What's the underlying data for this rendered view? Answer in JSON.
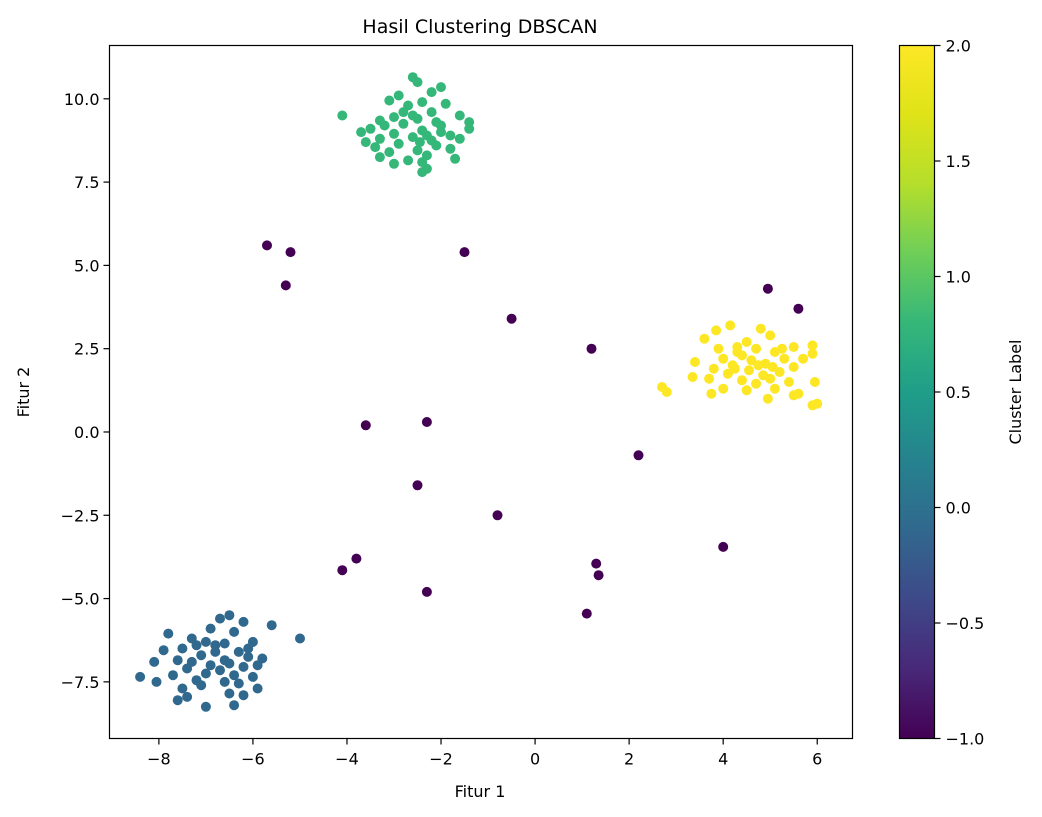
{
  "chart_data": {
    "type": "scatter",
    "title": "Hasil Clustering DBSCAN",
    "xlabel": "Fitur 1",
    "ylabel": "Fitur 2",
    "xlim": [
      -9.05,
      6.75
    ],
    "ylim": [
      -9.2,
      11.6
    ],
    "xticks": [
      -8,
      -6,
      -4,
      -2,
      0,
      2,
      4,
      6
    ],
    "yticks": [
      -7.5,
      -5.0,
      -2.5,
      0.0,
      2.5,
      5.0,
      7.5,
      10.0
    ],
    "xtick_labels": [
      "−8",
      "−6",
      "−4",
      "−2",
      "0",
      "2",
      "4",
      "6"
    ],
    "ytick_labels": [
      "−7.5",
      "−5.0",
      "−2.5",
      "0.0",
      "2.5",
      "5.0",
      "7.5",
      "10.0"
    ],
    "grid": false,
    "colormap": "viridis",
    "colorbar": {
      "label": "Cluster Label",
      "range": [
        -1.0,
        2.0
      ],
      "ticks": [
        -1.0,
        -0.5,
        0.0,
        0.5,
        1.0,
        1.5,
        2.0
      ],
      "tick_labels": [
        "−1.0",
        "−0.5",
        "0.0",
        "0.5",
        "1.0",
        "1.5",
        "2.0"
      ]
    },
    "series": [
      {
        "cluster_label": -1,
        "color": "#440154",
        "points": [
          [
            -5.7,
            5.6
          ],
          [
            -5.2,
            5.4
          ],
          [
            -5.3,
            4.4
          ],
          [
            -1.5,
            5.4
          ],
          [
            -0.5,
            3.4
          ],
          [
            1.2,
            2.5
          ],
          [
            -3.6,
            0.2
          ],
          [
            -2.3,
            0.3
          ],
          [
            2.2,
            -0.7
          ],
          [
            -2.5,
            -1.6
          ],
          [
            -0.8,
            -2.5
          ],
          [
            4.0,
            -3.45
          ],
          [
            -3.8,
            -3.8
          ],
          [
            -4.1,
            -4.15
          ],
          [
            1.3,
            -3.95
          ],
          [
            1.35,
            -4.3
          ],
          [
            -2.3,
            -4.8
          ],
          [
            1.1,
            -5.45
          ],
          [
            4.95,
            4.3
          ],
          [
            5.6,
            3.7
          ]
        ]
      },
      {
        "cluster_label": 0,
        "color": "#30688e",
        "points": [
          [
            -6.5,
            -5.5
          ],
          [
            -6.7,
            -5.6
          ],
          [
            -6.2,
            -5.7
          ],
          [
            -5.6,
            -5.8
          ],
          [
            -6.9,
            -5.9
          ],
          [
            -6.4,
            -6.0
          ],
          [
            -7.8,
            -6.05
          ],
          [
            -5.0,
            -6.2
          ],
          [
            -6.0,
            -6.3
          ],
          [
            -7.0,
            -6.3
          ],
          [
            -6.6,
            -6.35
          ],
          [
            -7.2,
            -6.4
          ],
          [
            -7.5,
            -6.5
          ],
          [
            -7.9,
            -6.55
          ],
          [
            -6.8,
            -6.6
          ],
          [
            -6.3,
            -6.6
          ],
          [
            -7.1,
            -6.7
          ],
          [
            -6.1,
            -6.75
          ],
          [
            -5.8,
            -6.8
          ],
          [
            -7.6,
            -6.85
          ],
          [
            -7.3,
            -6.9
          ],
          [
            -6.5,
            -6.95
          ],
          [
            -6.9,
            -7.0
          ],
          [
            -8.1,
            -6.9
          ],
          [
            -6.2,
            -7.05
          ],
          [
            -5.9,
            -7.0
          ],
          [
            -7.4,
            -7.1
          ],
          [
            -6.7,
            -7.15
          ],
          [
            -7.0,
            -7.25
          ],
          [
            -6.4,
            -7.3
          ],
          [
            -7.7,
            -7.3
          ],
          [
            -6.0,
            -7.35
          ],
          [
            -8.4,
            -7.35
          ],
          [
            -7.2,
            -7.45
          ],
          [
            -6.6,
            -7.5
          ],
          [
            -8.05,
            -7.5
          ],
          [
            -6.3,
            -7.55
          ],
          [
            -7.5,
            -7.7
          ],
          [
            -5.9,
            -7.7
          ],
          [
            -6.5,
            -7.85
          ],
          [
            -6.2,
            -7.9
          ],
          [
            -7.4,
            -7.95
          ],
          [
            -7.6,
            -8.05
          ],
          [
            -6.4,
            -8.2
          ],
          [
            -7.0,
            -8.25
          ],
          [
            -6.8,
            -6.4
          ],
          [
            -7.3,
            -6.2
          ],
          [
            -6.1,
            -6.5
          ],
          [
            -6.6,
            -6.85
          ],
          [
            -7.1,
            -7.6
          ]
        ]
      },
      {
        "cluster_label": 1,
        "color": "#35b779",
        "points": [
          [
            -2.6,
            10.65
          ],
          [
            -2.5,
            10.5
          ],
          [
            -2.0,
            10.35
          ],
          [
            -2.9,
            10.1
          ],
          [
            -2.2,
            10.2
          ],
          [
            -3.1,
            9.95
          ],
          [
            -2.4,
            9.9
          ],
          [
            -1.9,
            9.85
          ],
          [
            -2.7,
            9.8
          ],
          [
            -4.1,
            9.5
          ],
          [
            -2.2,
            9.6
          ],
          [
            -1.6,
            9.5
          ],
          [
            -3.0,
            9.45
          ],
          [
            -2.5,
            9.4
          ],
          [
            -3.3,
            9.35
          ],
          [
            -1.4,
            9.3
          ],
          [
            -2.8,
            9.25
          ],
          [
            -2.0,
            9.2
          ],
          [
            -3.5,
            9.1
          ],
          [
            -1.4,
            9.1
          ],
          [
            -2.4,
            9.05
          ],
          [
            -3.7,
            9.0
          ],
          [
            -3.0,
            8.95
          ],
          [
            -1.8,
            8.9
          ],
          [
            -2.6,
            8.85
          ],
          [
            -3.3,
            8.8
          ],
          [
            -1.6,
            8.8
          ],
          [
            -2.2,
            8.75
          ],
          [
            -3.6,
            8.7
          ],
          [
            -2.9,
            8.65
          ],
          [
            -2.1,
            8.6
          ],
          [
            -3.4,
            8.55
          ],
          [
            -1.8,
            8.5
          ],
          [
            -2.5,
            8.45
          ],
          [
            -3.1,
            8.4
          ],
          [
            -2.3,
            8.3
          ],
          [
            -3.3,
            8.25
          ],
          [
            -1.7,
            8.2
          ],
          [
            -2.7,
            8.15
          ],
          [
            -2.4,
            8.1
          ],
          [
            -3.0,
            8.05
          ],
          [
            -2.3,
            7.9
          ],
          [
            -2.4,
            7.8
          ],
          [
            -2.6,
            9.5
          ],
          [
            -2.0,
            9.0
          ],
          [
            -2.8,
            9.6
          ],
          [
            -3.2,
            9.2
          ],
          [
            -2.3,
            8.9
          ],
          [
            -2.1,
            9.3
          ],
          [
            -2.45,
            8.7
          ]
        ]
      },
      {
        "cluster_label": 2,
        "color": "#fde725",
        "points": [
          [
            4.15,
            3.2
          ],
          [
            4.8,
            3.1
          ],
          [
            3.85,
            3.05
          ],
          [
            5.0,
            2.9
          ],
          [
            3.6,
            2.8
          ],
          [
            4.5,
            2.7
          ],
          [
            5.9,
            2.6
          ],
          [
            4.3,
            2.55
          ],
          [
            5.5,
            2.55
          ],
          [
            3.9,
            2.5
          ],
          [
            4.7,
            2.5
          ],
          [
            5.1,
            2.4
          ],
          [
            5.9,
            2.35
          ],
          [
            4.4,
            2.3
          ],
          [
            4.0,
            2.2
          ],
          [
            5.3,
            2.2
          ],
          [
            5.7,
            2.2
          ],
          [
            4.6,
            2.15
          ],
          [
            3.4,
            2.1
          ],
          [
            4.9,
            2.05
          ],
          [
            4.2,
            2.0
          ],
          [
            5.5,
            1.95
          ],
          [
            3.8,
            1.9
          ],
          [
            4.55,
            1.85
          ],
          [
            5.2,
            1.8
          ],
          [
            4.1,
            1.75
          ],
          [
            4.85,
            1.7
          ],
          [
            3.35,
            1.65
          ],
          [
            3.7,
            1.6
          ],
          [
            5.0,
            1.6
          ],
          [
            4.4,
            1.55
          ],
          [
            5.4,
            1.5
          ],
          [
            5.95,
            1.5
          ],
          [
            4.7,
            1.45
          ],
          [
            2.7,
            1.35
          ],
          [
            4.0,
            1.3
          ],
          [
            5.1,
            1.3
          ],
          [
            2.8,
            1.2
          ],
          [
            4.5,
            1.25
          ],
          [
            3.75,
            1.15
          ],
          [
            5.6,
            1.15
          ],
          [
            5.5,
            1.1
          ],
          [
            4.95,
            1.0
          ],
          [
            6.0,
            0.85
          ],
          [
            5.9,
            0.8
          ],
          [
            4.3,
            2.4
          ],
          [
            4.75,
            2.0
          ],
          [
            5.25,
            2.5
          ],
          [
            4.25,
            1.9
          ],
          [
            5.05,
            1.95
          ]
        ]
      }
    ]
  }
}
